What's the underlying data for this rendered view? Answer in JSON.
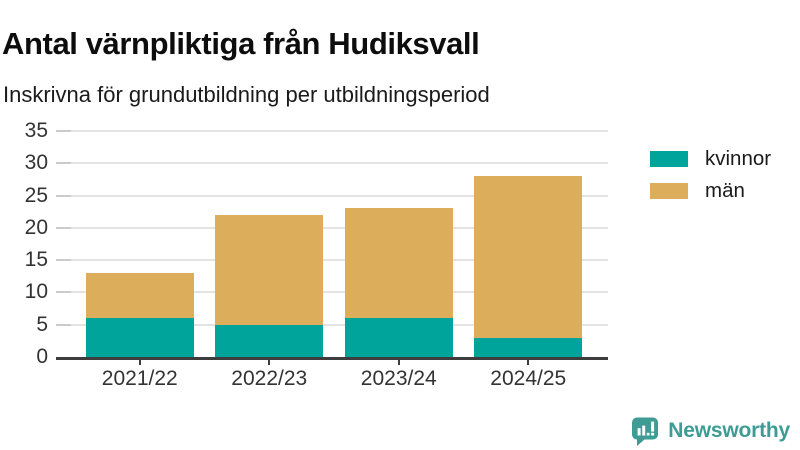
{
  "title": "Antal värnpliktiga från Hudiksvall",
  "subtitle": "Inskrivna för grundutbildning per utbildningsperiod",
  "legend": {
    "items": [
      {
        "label": "kvinnor",
        "color": "#00a49a"
      },
      {
        "label": "män",
        "color": "#dcae5c"
      }
    ]
  },
  "chart_data": {
    "type": "bar",
    "stacked": true,
    "title": "Antal värnpliktiga från Hudiksvall",
    "subtitle": "Inskrivna för grundutbildning per utbildningsperiod",
    "categories": [
      "2021/22",
      "2022/23",
      "2023/24",
      "2024/25"
    ],
    "series": [
      {
        "name": "kvinnor",
        "color": "#00a49a",
        "values": [
          6,
          5,
          6,
          3
        ]
      },
      {
        "name": "män",
        "color": "#dcae5c",
        "values": [
          7,
          17,
          17,
          25
        ]
      }
    ],
    "totals": [
      13,
      22,
      23,
      28
    ],
    "xlabel": "",
    "ylabel": "",
    "ylim": [
      0,
      35
    ],
    "yticks": [
      0,
      5,
      10,
      15,
      20,
      25,
      30,
      35
    ],
    "grid": true,
    "legend_position": "right"
  },
  "colors": {
    "kvinnor": "#00a49a",
    "man": "#dcae5c",
    "gridline": "#e3e3e3",
    "axis": "#3d3d3d",
    "tick_label": "#333333",
    "title_text": "#0d0d0d",
    "brand": "#3e9c94"
  },
  "footer": {
    "brand": "Newsworthy",
    "logo_icon": "bar-chart-speech-bubble-icon"
  }
}
